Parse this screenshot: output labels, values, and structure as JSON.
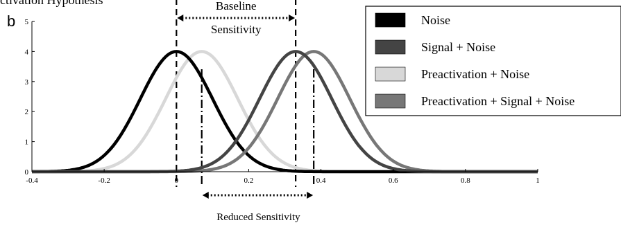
{
  "header": {
    "title_fragment": "ctivation Hypothesis",
    "panel_label": "b"
  },
  "chart_data": {
    "type": "line",
    "title": "",
    "xlabel": "",
    "ylabel": "",
    "xlim": [
      -0.4,
      1.0
    ],
    "ylim": [
      0,
      5
    ],
    "xticks": [
      "-0.4",
      "-0.2",
      "0",
      "0.2",
      "0.4",
      "0.6",
      "0.8",
      "1"
    ],
    "yticks": [
      "0",
      "1",
      "2",
      "3",
      "4",
      "5"
    ],
    "grid": false,
    "legend_position": "top-right",
    "series": [
      {
        "name": "Noise",
        "distribution": "normal",
        "mean": 0.0,
        "sd": 0.1,
        "peak": 4.0,
        "color": "#000000"
      },
      {
        "name": "Signal + Noise",
        "distribution": "normal",
        "mean": 0.33,
        "sd": 0.1,
        "peak": 4.0,
        "color": "#444444"
      },
      {
        "name": "Preactivation + Noise",
        "distribution": "normal",
        "mean": 0.07,
        "sd": 0.1,
        "peak": 4.0,
        "color": "#d8d8d8"
      },
      {
        "name": "Preactivation + Signal + Noise",
        "distribution": "normal",
        "mean": 0.38,
        "sd": 0.1,
        "peak": 4.0,
        "color": "#777777"
      }
    ],
    "reference_lines": [
      {
        "x": 0.0,
        "style": "dashed"
      },
      {
        "x": 0.33,
        "style": "dashed"
      },
      {
        "x": 0.07,
        "style": "dash-dot"
      },
      {
        "x": 0.38,
        "style": "dash-dot"
      }
    ],
    "annotations": [
      {
        "text_lines": [
          "Baseline",
          "Sensitivity"
        ],
        "from_x": 0.0,
        "to_x": 0.33,
        "position": "above plot"
      },
      {
        "text_lines": [
          "Reduced Sensitivity"
        ],
        "from_x": 0.07,
        "to_x": 0.38,
        "position": "below axis"
      }
    ]
  }
}
